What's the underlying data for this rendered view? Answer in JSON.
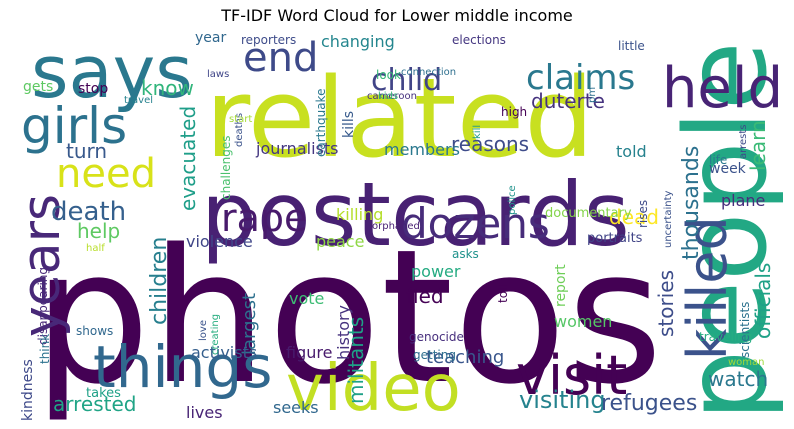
{
  "title": "TF-IDF Word Cloud for Lower middle income",
  "words": [
    {
      "text": "photos",
      "color": "#440154"
    },
    {
      "text": "related",
      "color": "#c8e020"
    },
    {
      "text": "postcards",
      "color": "#482173"
    },
    {
      "text": "people",
      "color": "#22a884"
    },
    {
      "text": "says",
      "color": "#2a788e"
    },
    {
      "text": "video",
      "color": "#c2df23"
    },
    {
      "text": "held",
      "color": "#482475"
    },
    {
      "text": "things",
      "color": "#31688e"
    },
    {
      "text": "visit",
      "color": "#440154"
    },
    {
      "text": "killed",
      "color": "#3b528b"
    },
    {
      "text": "girls",
      "color": "#2c728e"
    },
    {
      "text": "years",
      "color": "#482878"
    },
    {
      "text": "need",
      "color": "#d8e219"
    },
    {
      "text": "dozens",
      "color": "#472c7a"
    },
    {
      "text": "rape",
      "color": "#481a6c"
    },
    {
      "text": "end",
      "color": "#3e4a89"
    },
    {
      "text": "claims",
      "color": "#2a788e"
    },
    {
      "text": "child",
      "color": "#414487"
    },
    {
      "text": "death",
      "color": "#35608d"
    },
    {
      "text": "visiting",
      "color": "#25838e"
    },
    {
      "text": "refugees",
      "color": "#3b528b"
    },
    {
      "text": "arrested",
      "color": "#20a486"
    },
    {
      "text": "watch",
      "color": "#2a788e"
    },
    {
      "text": "duterte",
      "color": "#46337f"
    },
    {
      "text": "know",
      "color": "#31b57b"
    },
    {
      "text": "evacuated",
      "color": "#1f9e89"
    },
    {
      "text": "children",
      "color": "#277f8e"
    },
    {
      "text": "thousands",
      "color": "#2c718e"
    },
    {
      "text": "learn",
      "color": "#3aba76"
    },
    {
      "text": "officials",
      "color": "#1fa187"
    },
    {
      "text": "turn",
      "color": "#38598c"
    },
    {
      "text": "reasons",
      "color": "#3e4c8a"
    },
    {
      "text": "dead",
      "color": "#fde725"
    },
    {
      "text": "help",
      "color": "#5ec962"
    },
    {
      "text": "stories",
      "color": "#3d4d8a"
    },
    {
      "text": "fled",
      "color": "#440154"
    },
    {
      "text": "militants",
      "color": "#1fa187"
    },
    {
      "text": "teaching",
      "color": "#39568c"
    },
    {
      "text": "largest",
      "color": "#2d708e"
    },
    {
      "text": "journalists",
      "color": "#453781"
    },
    {
      "text": "killing",
      "color": "#b5de2b"
    },
    {
      "text": "peace",
      "color": "#8fd744"
    },
    {
      "text": "violence",
      "color": "#404688"
    },
    {
      "text": "figure",
      "color": "#481b6d"
    },
    {
      "text": "activists",
      "color": "#355f8d"
    },
    {
      "text": "history",
      "color": "#46327e"
    },
    {
      "text": "power",
      "color": "#25ab82"
    },
    {
      "text": "vote",
      "color": "#3dbc74"
    },
    {
      "text": "women",
      "color": "#56c667"
    },
    {
      "text": "seeks",
      "color": "#31688e"
    },
    {
      "text": "lives",
      "color": "#482475"
    },
    {
      "text": "told",
      "color": "#26828e"
    },
    {
      "text": "week",
      "color": "#3b528b"
    },
    {
      "text": "plane",
      "color": "#472d7b"
    },
    {
      "text": "changing",
      "color": "#24868e"
    },
    {
      "text": "members",
      "color": "#2a788e"
    },
    {
      "text": "year",
      "color": "#31688e"
    },
    {
      "text": "gets",
      "color": "#5ec962"
    },
    {
      "text": "stop",
      "color": "#440154"
    },
    {
      "text": "kindness",
      "color": "#3e4989"
    },
    {
      "text": "takes",
      "color": "#1fa188"
    },
    {
      "text": "report",
      "color": "#6ece58"
    },
    {
      "text": "documentary",
      "color": "#84d44b"
    },
    {
      "text": "portraits",
      "color": "#414487"
    },
    {
      "text": "asks",
      "color": "#20928c"
    },
    {
      "text": "toll",
      "color": "#440154"
    },
    {
      "text": "genocide",
      "color": "#472f7d"
    },
    {
      "text": "getting",
      "color": "#2e6e8e"
    },
    {
      "text": "traveling",
      "color": "#26ad81"
    },
    {
      "text": "scientists",
      "color": "#2c728e"
    },
    {
      "text": "woman",
      "color": "#a0da39"
    },
    {
      "text": "uncertainty",
      "color": "#3b528b"
    },
    {
      "text": "life",
      "color": "#2a788e"
    },
    {
      "text": "rises",
      "color": "#3e4a89"
    },
    {
      "text": "police",
      "color": "#20928c"
    },
    {
      "text": "orphaned",
      "color": "#482173"
    },
    {
      "text": "elections",
      "color": "#453781"
    },
    {
      "text": "reporters",
      "color": "#3e4c8a"
    },
    {
      "text": "laws",
      "color": "#404688"
    },
    {
      "text": "earthquake",
      "color": "#2a788e"
    },
    {
      "text": "kills",
      "color": "#375a8c"
    },
    {
      "text": "look",
      "color": "#37b878"
    },
    {
      "text": "connection",
      "color": "#2e6f8e"
    },
    {
      "text": "cameroon",
      "color": "#46307e"
    },
    {
      "text": "deaths",
      "color": "#3b528b"
    },
    {
      "text": "travel",
      "color": "#26828e"
    },
    {
      "text": "high",
      "color": "#440154"
    },
    {
      "text": "kill",
      "color": "#1f9a8a"
    },
    {
      "text": "pm",
      "color": "#2d708e"
    },
    {
      "text": "arrests",
      "color": "#3e4989"
    },
    {
      "text": "little",
      "color": "#3b528b"
    },
    {
      "text": "start",
      "color": "#a5db36"
    },
    {
      "text": "challenges",
      "color": "#4ac16d"
    },
    {
      "text": "disappearing",
      "color": "#482878"
    },
    {
      "text": "half",
      "color": "#b8de29"
    },
    {
      "text": "shows",
      "color": "#31688e"
    },
    {
      "text": "think",
      "color": "#2c728e"
    },
    {
      "text": "love",
      "color": "#3a538b"
    },
    {
      "text": "creating",
      "color": "#28ae80"
    },
    {
      "text": "kids",
      "color": "#35b779"
    }
  ]
}
